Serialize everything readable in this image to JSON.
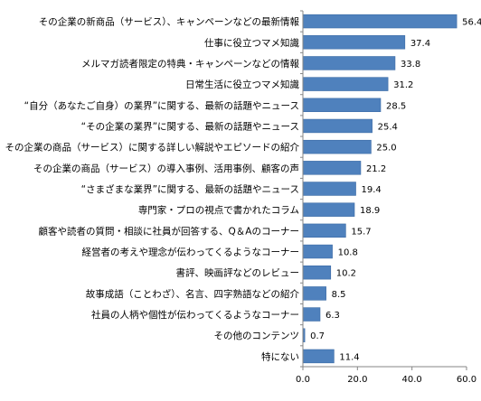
{
  "chart_data": {
    "type": "bar",
    "orientation": "horizontal",
    "categories": [
      "その企業の新商品（サービス）、キャンペーンなどの最新情報",
      "仕事に役立つマメ知識",
      "メルマガ読者限定の特典・キャンペーンなどの情報",
      "日常生活に役立つマメ知識",
      "“自分（あなたご自身）の業界”に関する、最新の話題やニュース",
      "“その企業の業界”に関する、最新の話題やニュース",
      "その企業の商品（サービス）に関する詳しい解説やエピソードの紹介",
      "その企業の商品（サービス）の導入事例、活用事例、顧客の声",
      "“さまざまな業界”に関する、最新の話題やニュース",
      "専門家・プロの視点で書かれたコラム",
      "顧客や読者の質問・相談に社員が回答する、Q＆Aのコーナー",
      "経営者の考えや理念が伝わってくるようなコーナー",
      "書評、映画評などのレビュー",
      "故事成語（ことわざ）、名言、四字熟語などの紹介",
      "社員の人柄や個性が伝わってくるようなコーナー",
      "その他のコンテンツ",
      "特にない"
    ],
    "values": [
      56.4,
      37.4,
      33.8,
      31.2,
      28.5,
      25.4,
      25.0,
      21.2,
      19.4,
      18.9,
      15.7,
      10.8,
      10.2,
      8.5,
      6.3,
      0.7,
      11.4
    ],
    "value_labels": [
      "56.4",
      "37.4",
      "33.8",
      "31.2",
      "28.5",
      "25.4",
      "25.0",
      "21.2",
      "19.4",
      "18.9",
      "15.7",
      "10.8",
      "10.2",
      "8.5",
      "6.3",
      "0.7",
      "11.4"
    ],
    "xlim": [
      0,
      60
    ],
    "xticks": [
      0,
      20,
      40,
      60
    ],
    "xtick_labels": [
      "0.0",
      "20.0",
      "40.0",
      "60.0"
    ],
    "grid": false,
    "legend": "none",
    "bar_color": "#4f81bd",
    "bar_edge_color": "#3a6aa5"
  }
}
